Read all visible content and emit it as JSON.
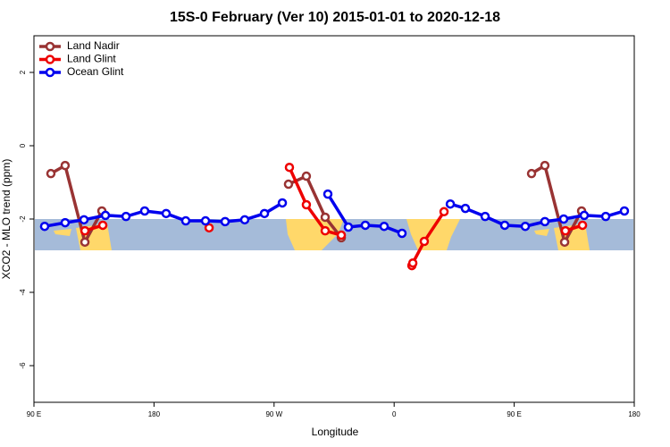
{
  "chart_data": {
    "type": "line",
    "title": "15S-0 February (Ver 10)   2015-01-01 to 2020-12-18",
    "xlabel": "Longitude",
    "ylabel": "XCO2 - MLO trend (ppm)",
    "xlim": [
      90,
      540
    ],
    "xticks": [
      {
        "value": 90,
        "label": "90 E"
      },
      180,
      {
        "value": 270,
        "label": "90 W"
      },
      {
        "value": 360,
        "label": "0"
      },
      {
        "value": 450,
        "label": "90 E"
      },
      {
        "value": 540,
        "label": "180"
      }
    ],
    "ylim": [
      -7,
      3
    ],
    "yticks": [
      -6,
      -4,
      -2,
      0,
      2
    ],
    "legend": "top-left",
    "series": [
      {
        "name": "Land Nadir",
        "color": "#993333",
        "x": [
          102.7,
          113.4,
          128.2,
          140.9,
          null,
          280.8,
          294.2,
          308.3,
          320.4,
          null,
          463,
          473,
          487.8,
          500.5
        ],
        "values": [
          -0.76,
          -0.54,
          -2.63,
          -1.78,
          null,
          -1.05,
          -0.83,
          -1.95,
          -2.51,
          null,
          -0.76,
          -0.54,
          -2.63,
          -1.78
        ]
      },
      {
        "name": "Land Glint",
        "color": "#ee0000",
        "x": [
          128.2,
          141.6,
          null,
          221.3,
          null,
          281.5,
          294.2,
          308.3,
          320.4,
          null,
          373.3,
          374,
          382.6,
          397.4,
          null,
          488.4,
          501.2
        ],
        "values": [
          -2.32,
          -2.17,
          null,
          -2.24,
          null,
          -0.59,
          -1.61,
          -2.32,
          -2.44,
          null,
          -3.27,
          -3.2,
          -2.61,
          -1.8,
          null,
          -2.32,
          -2.17
        ]
      },
      {
        "name": "Ocean Glint",
        "color": "#0000ee",
        "x": [
          98,
          113.4,
          127.5,
          143.6,
          159,
          173,
          189.1,
          203.8,
          218.6,
          233.3,
          248,
          262.8,
          276.2,
          null,
          310.3,
          325.7,
          338.4,
          352.5,
          365.9,
          null,
          402.1,
          413.4,
          428.2,
          442.9,
          458.3,
          473,
          487.1,
          502.5,
          518.6,
          532.6
        ],
        "values": [
          -2.2,
          -2.1,
          -2.02,
          -1.9,
          -1.93,
          -1.78,
          -1.85,
          -2.05,
          -2.05,
          -2.07,
          -2.02,
          -1.85,
          -1.56,
          null,
          -1.32,
          -2.22,
          -2.17,
          -2.2,
          -2.39,
          null,
          -1.59,
          -1.71,
          -1.93,
          -2.17,
          -2.2,
          -2.07,
          -2.0,
          -1.9,
          -1.93,
          -1.78
        ]
      }
    ]
  }
}
